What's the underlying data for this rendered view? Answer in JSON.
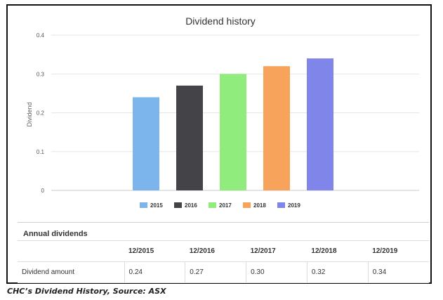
{
  "chart_data": {
    "type": "bar",
    "title": "Dividend history",
    "ylabel": "Dividend",
    "xlabel": "",
    "ylim": [
      0,
      0.4
    ],
    "yticks": [
      "0",
      "0.1",
      "0.2",
      "0.3",
      "0.4"
    ],
    "grid": true,
    "legend_position": "bottom",
    "categories": [
      "2015",
      "2016",
      "2017",
      "2018",
      "2019"
    ],
    "values": [
      0.24,
      0.27,
      0.3,
      0.32,
      0.34
    ],
    "colors": [
      "#7cb5ec",
      "#434348",
      "#90ed7d",
      "#f7a35c",
      "#8085e9"
    ]
  },
  "table": {
    "title": "Annual dividends",
    "headers": [
      "",
      "12/2015",
      "12/2016",
      "12/2017",
      "12/2018",
      "12/2019"
    ],
    "rows": [
      [
        "Dividend amount",
        "0.24",
        "0.27",
        "0.30",
        "0.32",
        "0.34"
      ]
    ]
  },
  "caption": "CHC’s Dividend History, Source: ASX"
}
